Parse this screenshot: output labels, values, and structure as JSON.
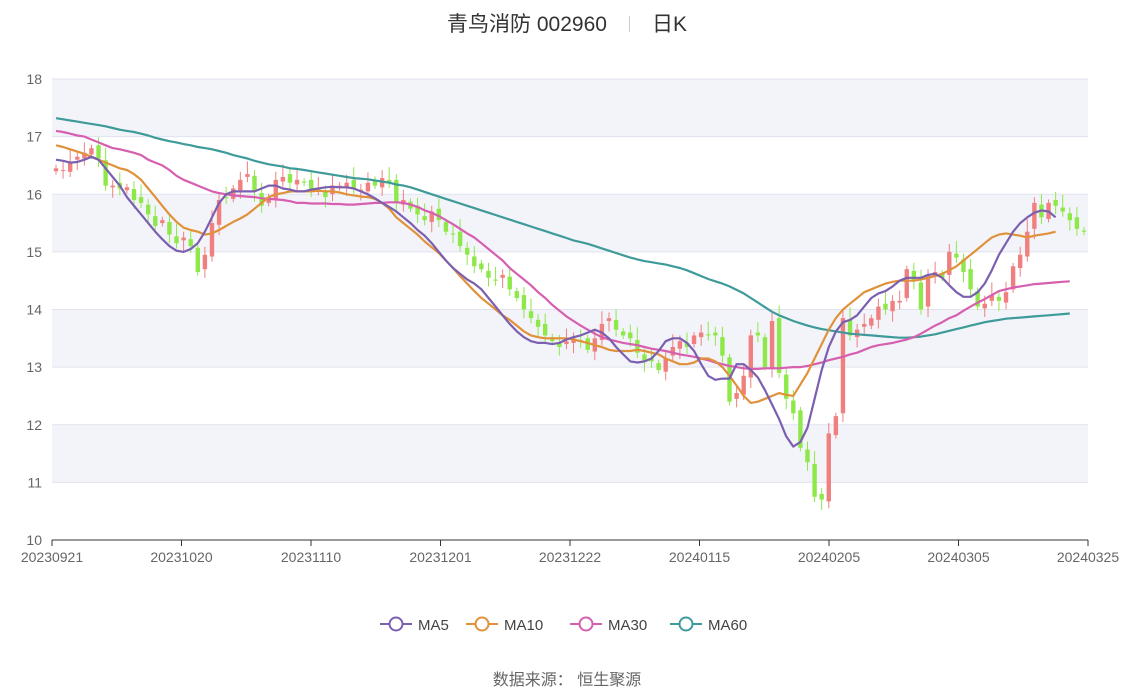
{
  "title": {
    "main": "青鸟消防 002960",
    "period": "日K"
  },
  "source": "数据来源： 恒生聚源",
  "colors": {
    "up": "#f08080",
    "down": "#8ee84a",
    "ma5": "#7b5fb0",
    "ma10": "#e0913a",
    "ma30": "#d65fb0",
    "ma60": "#3f9a9a",
    "band": "#f3f4fa",
    "grid": "#e0e3ef"
  },
  "chart_data": {
    "type": "candlestick",
    "title": "青鸟消防 002960",
    "period": "日K",
    "ylim": [
      10,
      18
    ],
    "yticks": [
      10,
      11,
      12,
      13,
      14,
      15,
      16,
      17,
      18
    ],
    "grid": true,
    "legend_position": "bottom",
    "xticks": [
      "20230921",
      "20231020",
      "20231110",
      "20231201",
      "20231222",
      "20240115",
      "20240205",
      "20240305",
      "20240325"
    ],
    "legend": [
      "MA5",
      "MA10",
      "MA30",
      "MA60"
    ],
    "close": [
      16.45,
      16.42,
      16.55,
      16.65,
      16.72,
      16.8,
      16.62,
      16.15,
      16.15,
      16.1,
      16.12,
      15.9,
      15.85,
      15.65,
      15.45,
      15.55,
      15.3,
      15.15,
      15.25,
      15.1,
      14.65,
      14.95,
      15.5,
      15.9,
      15.95,
      16.1,
      16.25,
      16.35,
      16.05,
      15.8,
      15.95,
      16.25,
      16.3,
      16.2,
      16.25,
      16.2,
      16.1,
      16.08,
      15.95,
      16.15,
      16.15,
      16.2,
      16.1,
      16.08,
      16.2,
      16.15,
      16.28,
      16.2,
      15.85,
      15.9,
      15.75,
      15.65,
      15.55,
      15.7,
      15.55,
      15.35,
      15.3,
      15.1,
      14.95,
      14.75,
      14.7,
      14.55,
      14.5,
      14.6,
      14.35,
      14.2,
      14.0,
      13.85,
      13.7,
      13.55,
      13.45,
      13.35,
      13.45,
      13.5,
      13.45,
      13.3,
      13.5,
      13.75,
      13.85,
      13.65,
      13.55,
      13.5,
      13.25,
      13.1,
      13.1,
      12.95,
      13.15,
      13.35,
      13.45,
      13.35,
      13.55,
      13.6,
      13.55,
      13.55,
      13.2,
      12.4,
      12.55,
      12.85,
      13.55,
      13.55,
      13.0,
      13.8,
      12.9,
      12.45,
      12.2,
      11.6,
      11.35,
      10.75,
      10.7,
      11.85,
      12.15,
      13.85,
      13.55,
      13.65,
      13.75,
      13.85,
      14.05,
      14.0,
      14.15,
      14.15,
      14.7,
      14.5,
      14.0,
      14.6,
      14.65,
      14.55,
      15.0,
      14.9,
      14.65,
      14.35,
      14.05,
      14.1,
      14.25,
      14.15,
      14.3,
      14.75,
      14.95,
      15.35,
      15.85,
      15.6,
      15.85,
      15.8,
      15.7,
      15.55,
      15.4,
      15.35
    ],
    "ma5": [
      16.6,
      16.58,
      16.55,
      16.56,
      16.6,
      16.65,
      16.6,
      16.45,
      16.3,
      16.15,
      15.95,
      15.8,
      15.65,
      15.5,
      15.35,
      15.22,
      15.1,
      15.02,
      15.0,
      15.05,
      15.15,
      15.35,
      15.6,
      15.85,
      16.0,
      16.05,
      16.05,
      16.05,
      16.05,
      16.1,
      16.15,
      16.15,
      16.1,
      16.08,
      16.05,
      16.05,
      16.08,
      16.1,
      16.12,
      16.13,
      16.12,
      16.12,
      16.1,
      16.05,
      16.0,
      15.93,
      15.85,
      15.78,
      15.7,
      15.6,
      15.5,
      15.38,
      15.28,
      15.15,
      15.0,
      14.85,
      14.72,
      14.62,
      14.52,
      14.45,
      14.35,
      14.2,
      14.05,
      13.9,
      13.75,
      13.62,
      13.52,
      13.45,
      13.42,
      13.42,
      13.4,
      13.42,
      13.48,
      13.52,
      13.55,
      13.6,
      13.65,
      13.6,
      13.5,
      13.35,
      13.22,
      13.1,
      13.08,
      13.1,
      13.15,
      13.28,
      13.45,
      13.5,
      13.5,
      13.42,
      13.28,
      13.05,
      12.85,
      12.78,
      12.8,
      12.8,
      13.05,
      13.05,
      12.95,
      12.82,
      12.6,
      12.35,
      12.1,
      11.8,
      11.62,
      11.7,
      11.95,
      12.45,
      12.95,
      13.35,
      13.62,
      13.78,
      13.82,
      13.9,
      14.05,
      14.2,
      14.28,
      14.32,
      14.4,
      14.5,
      14.55,
      14.55,
      14.55,
      14.6,
      14.62,
      14.55,
      14.42,
      14.3,
      14.22,
      14.22,
      14.3,
      14.45,
      14.68,
      14.95,
      15.15,
      15.35,
      15.5,
      15.6,
      15.68,
      15.72,
      15.7,
      15.6
    ],
    "ma10": [
      16.85,
      16.82,
      16.78,
      16.74,
      16.7,
      16.65,
      16.6,
      16.55,
      16.5,
      16.45,
      16.42,
      16.35,
      16.25,
      16.1,
      15.95,
      15.8,
      15.65,
      15.52,
      15.42,
      15.38,
      15.35,
      15.3,
      15.32,
      15.38,
      15.45,
      15.52,
      15.58,
      15.65,
      15.75,
      15.85,
      15.95,
      16.0,
      16.02,
      16.05,
      16.05,
      16.05,
      16.05,
      16.06,
      16.05,
      16.05,
      16.03,
      16.0,
      15.98,
      15.96,
      15.95,
      15.92,
      15.85,
      15.75,
      15.6,
      15.5,
      15.4,
      15.3,
      15.18,
      15.08,
      14.98,
      14.85,
      14.72,
      14.58,
      14.45,
      14.32,
      14.2,
      14.1,
      14.0,
      13.9,
      13.82,
      13.72,
      13.62,
      13.55,
      13.52,
      13.5,
      13.5,
      13.5,
      13.5,
      13.48,
      13.45,
      13.42,
      13.38,
      13.35,
      13.3,
      13.28,
      13.28,
      13.28,
      13.3,
      13.28,
      13.25,
      13.22,
      13.15,
      13.1,
      13.05,
      13.05,
      13.08,
      13.15,
      13.15,
      13.1,
      13.0,
      12.85,
      12.68,
      12.5,
      12.38,
      12.4,
      12.45,
      12.5,
      12.55,
      12.52,
      12.5,
      12.7,
      12.9,
      13.15,
      13.4,
      13.65,
      13.85,
      14.0,
      14.1,
      14.2,
      14.3,
      14.35,
      14.4,
      14.45,
      14.48,
      14.5,
      14.5,
      14.5,
      14.52,
      14.55,
      14.58,
      14.62,
      14.68,
      14.75,
      14.85,
      14.95,
      15.05,
      15.15,
      15.25,
      15.3,
      15.32,
      15.3,
      15.28,
      15.25,
      15.28,
      15.3,
      15.32,
      15.35
    ],
    "ma30": [
      17.1,
      17.08,
      17.05,
      17.02,
      17.0,
      16.95,
      16.9,
      16.85,
      16.8,
      16.78,
      16.75,
      16.72,
      16.68,
      16.6,
      16.55,
      16.5,
      16.42,
      16.32,
      16.25,
      16.2,
      16.15,
      16.1,
      16.05,
      16.02,
      16.0,
      15.98,
      15.97,
      15.96,
      15.95,
      15.93,
      15.92,
      15.91,
      15.9,
      15.88,
      15.85,
      15.85,
      15.84,
      15.84,
      15.84,
      15.83,
      15.83,
      15.82,
      15.82,
      15.83,
      15.84,
      15.85,
      15.85,
      15.86,
      15.86,
      15.85,
      15.82,
      15.78,
      15.72,
      15.68,
      15.62,
      15.55,
      15.48,
      15.4,
      15.32,
      15.25,
      15.15,
      15.05,
      14.95,
      14.85,
      14.72,
      14.62,
      14.52,
      14.42,
      14.3,
      14.2,
      14.08,
      13.98,
      13.88,
      13.8,
      13.72,
      13.65,
      13.58,
      13.52,
      13.48,
      13.45,
      13.42,
      13.4,
      13.38,
      13.35,
      13.32,
      13.3,
      13.28,
      13.25,
      13.22,
      13.2,
      13.18,
      13.15,
      13.12,
      13.08,
      13.05,
      13.02,
      13.0,
      12.98,
      12.97,
      12.97,
      12.98,
      12.98,
      12.98,
      12.99,
      13.0,
      13.0,
      13.02,
      13.05,
      13.08,
      13.12,
      13.15,
      13.18,
      13.22,
      13.25,
      13.3,
      13.35,
      13.38,
      13.4,
      13.42,
      13.45,
      13.48,
      13.52,
      13.58,
      13.65,
      13.72,
      13.78,
      13.85,
      13.9,
      13.98,
      14.05,
      14.12,
      14.18,
      14.25,
      14.32,
      14.35,
      14.38,
      14.4,
      14.42,
      14.44,
      14.45,
      14.46,
      14.47,
      14.48,
      14.49
    ],
    "ma60": [
      17.32,
      17.3,
      17.28,
      17.26,
      17.24,
      17.22,
      17.2,
      17.18,
      17.15,
      17.12,
      17.1,
      17.08,
      17.05,
      17.02,
      16.98,
      16.95,
      16.92,
      16.9,
      16.87,
      16.85,
      16.82,
      16.8,
      16.78,
      16.75,
      16.72,
      16.68,
      16.65,
      16.62,
      16.58,
      16.55,
      16.52,
      16.5,
      16.48,
      16.45,
      16.44,
      16.42,
      16.4,
      16.38,
      16.36,
      16.34,
      16.32,
      16.3,
      16.28,
      16.27,
      16.26,
      16.24,
      16.22,
      16.2,
      16.17,
      16.15,
      16.12,
      16.08,
      16.04,
      16.0,
      15.96,
      15.92,
      15.88,
      15.84,
      15.8,
      15.76,
      15.72,
      15.68,
      15.64,
      15.6,
      15.56,
      15.52,
      15.48,
      15.44,
      15.4,
      15.36,
      15.32,
      15.28,
      15.24,
      15.2,
      15.17,
      15.14,
      15.1,
      15.06,
      15.02,
      14.98,
      14.94,
      14.9,
      14.87,
      14.84,
      14.82,
      14.8,
      14.78,
      14.75,
      14.72,
      14.68,
      14.63,
      14.58,
      14.53,
      14.49,
      14.45,
      14.4,
      14.34,
      14.28,
      14.2,
      14.12,
      14.04,
      13.96,
      13.9,
      13.85,
      13.8,
      13.76,
      13.72,
      13.69,
      13.66,
      13.64,
      13.62,
      13.6,
      13.58,
      13.57,
      13.56,
      13.55,
      13.54,
      13.53,
      13.52,
      13.51,
      13.51,
      13.52,
      13.53,
      13.55,
      13.57,
      13.6,
      13.63,
      13.66,
      13.69,
      13.72,
      13.75,
      13.78,
      13.8,
      13.82,
      13.84,
      13.85,
      13.86,
      13.87,
      13.88,
      13.89,
      13.9,
      13.91,
      13.92,
      13.93
    ]
  }
}
